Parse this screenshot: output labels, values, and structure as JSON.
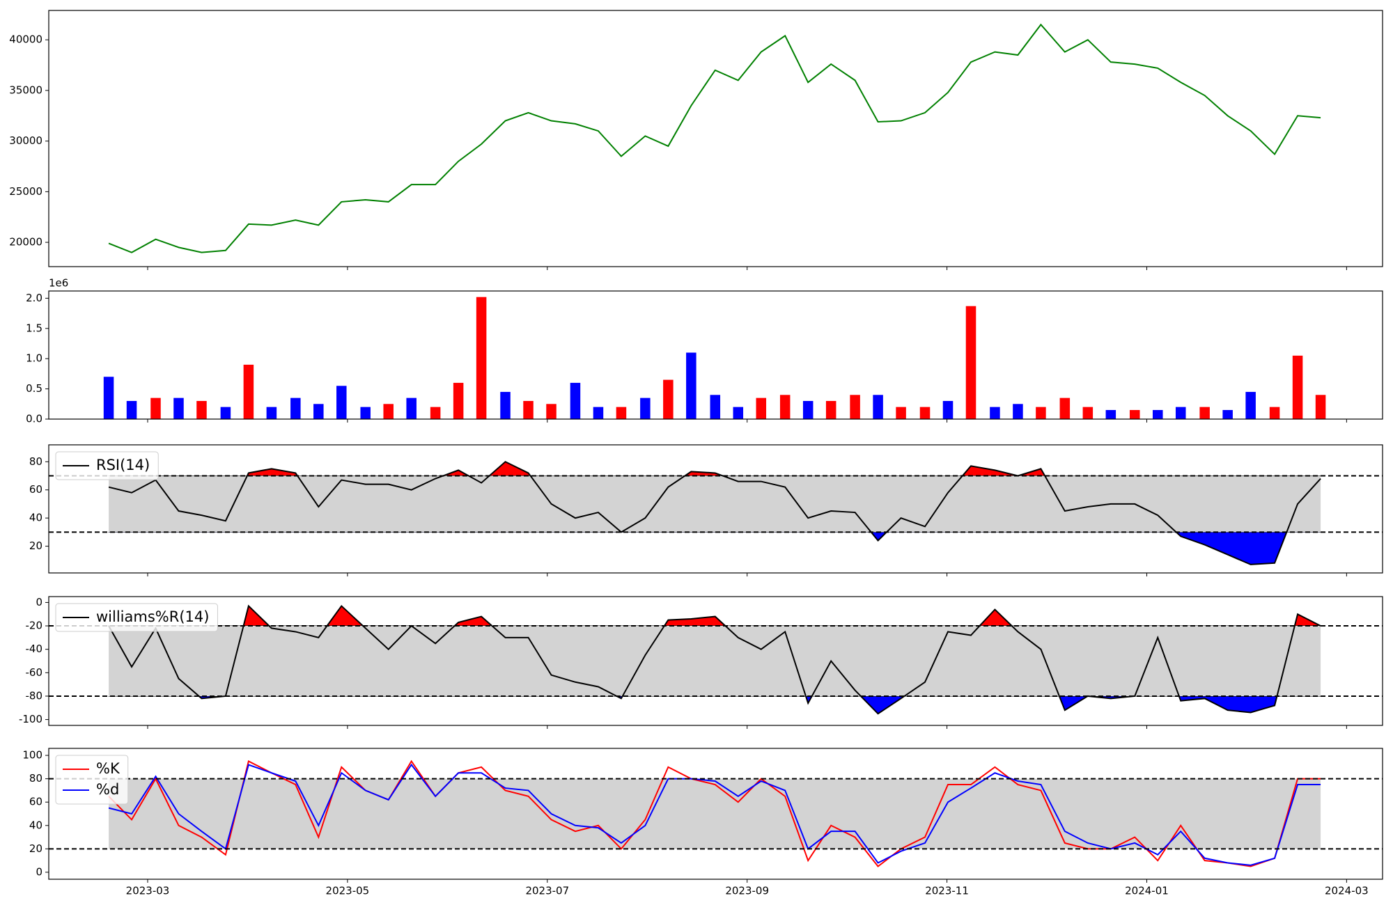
{
  "chart_data": [
    {
      "type": "line",
      "x": [
        -0.39,
        -0.16,
        0.08,
        0.31,
        0.54,
        0.78,
        1.01,
        1.24,
        1.48,
        1.71,
        1.94,
        2.18,
        2.41,
        2.64,
        2.88,
        3.11,
        3.34,
        3.58,
        3.81,
        4.04,
        4.28,
        4.51,
        4.74,
        4.98,
        5.21,
        5.44,
        5.68,
        5.91,
        6.14,
        6.38,
        6.61,
        6.84,
        7.08,
        7.31,
        7.54,
        7.78,
        8.01,
        8.24,
        8.48,
        8.71,
        8.94,
        9.18,
        9.41,
        9.64,
        9.88,
        10.11,
        10.34,
        10.58,
        10.81,
        11.04,
        11.28,
        11.51,
        11.74
      ],
      "xlim": [
        -0.99,
        12.36
      ],
      "ylim": [
        17600,
        42900
      ],
      "yticks": [
        20000,
        25000,
        30000,
        35000,
        40000
      ],
      "series": [
        {
          "color": "green",
          "values": [
            19900,
            19000,
            20300,
            19500,
            19000,
            19200,
            21800,
            21700,
            22200,
            21700,
            24000,
            24200,
            24000,
            25700,
            25700,
            28000,
            29700,
            32000,
            32800,
            32000,
            31700,
            31000,
            28500,
            30500,
            29500,
            33500,
            37000,
            36000,
            38800,
            40400,
            35800,
            37600,
            36000,
            31900,
            32000,
            32800,
            34800,
            37800,
            38800,
            38500,
            41500,
            38800,
            40000,
            37800,
            37600,
            37200,
            35800,
            34500,
            32500,
            31000,
            28700,
            32500,
            32300
          ]
        }
      ]
    },
    {
      "type": "bar",
      "x": [
        -0.39,
        -0.16,
        0.08,
        0.31,
        0.54,
        0.78,
        1.01,
        1.24,
        1.48,
        1.71,
        1.94,
        2.18,
        2.41,
        2.64,
        2.88,
        3.11,
        3.34,
        3.58,
        3.81,
        4.04,
        4.28,
        4.51,
        4.74,
        4.98,
        5.21,
        5.44,
        5.68,
        5.91,
        6.14,
        6.38,
        6.61,
        6.84,
        7.08,
        7.31,
        7.54,
        7.78,
        8.01,
        8.24,
        8.48,
        8.71,
        8.94,
        9.18,
        9.41,
        9.64,
        9.88,
        10.11,
        10.34,
        10.58,
        10.81,
        11.04,
        11.28,
        11.51,
        11.74
      ],
      "xlim": [
        -0.99,
        12.36
      ],
      "ylim": [
        0,
        2.12
      ],
      "yticks": [
        {
          "value": 0,
          "label": "0.0"
        },
        0.5,
        {
          "value": 1,
          "label": "1.0"
        },
        1.5,
        {
          "value": 2,
          "label": "2.0"
        }
      ],
      "y_offset_label": "1e6",
      "series": [
        {
          "colors": [
            "blue",
            "blue",
            "red",
            "blue",
            "red",
            "blue",
            "red",
            "blue",
            "blue",
            "blue",
            "blue",
            "blue",
            "red",
            "blue",
            "red",
            "red",
            "red",
            "blue",
            "red",
            "red",
            "blue",
            "blue",
            "red",
            "blue",
            "red",
            "blue",
            "blue",
            "blue",
            "red",
            "red",
            "blue",
            "red",
            "red",
            "blue",
            "red",
            "red",
            "blue",
            "red",
            "blue",
            "blue",
            "red",
            "red",
            "red",
            "blue",
            "red",
            "blue",
            "blue",
            "red",
            "blue",
            "blue",
            "red",
            "red",
            "red"
          ],
          "values": [
            0.7,
            0.3,
            0.35,
            0.35,
            0.3,
            0.2,
            0.9,
            0.2,
            0.35,
            0.25,
            0.55,
            0.2,
            0.25,
            0.35,
            0.2,
            0.6,
            2.02,
            0.45,
            0.3,
            0.25,
            0.6,
            0.2,
            0.2,
            0.35,
            0.65,
            1.1,
            0.4,
            0.2,
            0.35,
            0.4,
            0.3,
            0.3,
            0.4,
            0.4,
            0.2,
            0.2,
            0.3,
            1.87,
            0.2,
            0.25,
            0.2,
            0.35,
            0.2,
            0.15,
            0.15,
            0.15,
            0.2,
            0.2,
            0.15,
            0.45,
            0.2,
            1.05,
            0.4
          ]
        }
      ]
    },
    {
      "type": "line",
      "x": [
        -0.39,
        -0.16,
        0.08,
        0.31,
        0.54,
        0.78,
        1.01,
        1.24,
        1.48,
        1.71,
        1.94,
        2.18,
        2.41,
        2.64,
        2.88,
        3.11,
        3.34,
        3.58,
        3.81,
        4.04,
        4.28,
        4.51,
        4.74,
        4.98,
        5.21,
        5.44,
        5.68,
        5.91,
        6.14,
        6.38,
        6.61,
        6.84,
        7.08,
        7.31,
        7.54,
        7.78,
        8.01,
        8.24,
        8.48,
        8.71,
        8.94,
        9.18,
        9.41,
        9.64,
        9.88,
        10.11,
        10.34,
        10.58,
        10.81,
        11.04,
        11.28,
        11.51,
        11.74
      ],
      "xlim": [
        -0.99,
        12.36
      ],
      "ylim": [
        1,
        92
      ],
      "yticks": [
        20,
        40,
        60,
        80
      ],
      "hlines": [
        30,
        70
      ],
      "band_color": "#d3d3d3",
      "overbought_color": "red",
      "oversold_color": "blue",
      "legend": "upper left",
      "series": [
        {
          "name": "RSI(14)",
          "color": "black",
          "values": [
            62,
            58,
            67,
            45,
            42,
            38,
            72,
            75,
            72,
            48,
            67,
            64,
            64,
            60,
            68,
            74,
            65,
            80,
            72,
            50,
            40,
            44,
            30,
            40,
            62,
            73,
            72,
            66,
            66,
            62,
            40,
            45,
            44,
            24,
            40,
            34,
            58,
            77,
            74,
            70,
            75,
            45,
            48,
            50,
            50,
            42,
            27,
            21,
            14,
            7,
            8,
            50,
            68
          ]
        }
      ]
    },
    {
      "type": "line",
      "x": [
        -0.39,
        -0.16,
        0.08,
        0.31,
        0.54,
        0.78,
        1.01,
        1.24,
        1.48,
        1.71,
        1.94,
        2.18,
        2.41,
        2.64,
        2.88,
        3.11,
        3.34,
        3.58,
        3.81,
        4.04,
        4.28,
        4.51,
        4.74,
        4.98,
        5.21,
        5.44,
        5.68,
        5.91,
        6.14,
        6.38,
        6.61,
        6.84,
        7.08,
        7.31,
        7.54,
        7.78,
        8.01,
        8.24,
        8.48,
        8.71,
        8.94,
        9.18,
        9.41,
        9.64,
        9.88,
        10.11,
        10.34,
        10.58,
        10.81,
        11.04,
        11.28,
        11.51,
        11.74
      ],
      "xlim": [
        -0.99,
        12.36
      ],
      "ylim": [
        -105,
        5
      ],
      "yticks": [
        -100,
        -80,
        -60,
        -40,
        -20,
        0
      ],
      "hlines": [
        -80,
        -20
      ],
      "band_color": "#d3d3d3",
      "overbought_color": "red",
      "oversold_color": "blue",
      "legend": "upper left",
      "series": [
        {
          "name": "williams%R(14)",
          "color": "black",
          "values": [
            -20,
            -55,
            -22,
            -65,
            -82,
            -80,
            -3,
            -22,
            -25,
            -30,
            -3,
            -22,
            -40,
            -20,
            -35,
            -17,
            -12,
            -30,
            -30,
            -62,
            -68,
            -72,
            -82,
            -45,
            -15,
            -14,
            -12,
            -30,
            -40,
            -25,
            -86,
            -50,
            -75,
            -95,
            -82,
            -68,
            -25,
            -28,
            -6,
            -25,
            -40,
            -92,
            -80,
            -82,
            -80,
            -30,
            -84,
            -82,
            -92,
            -94,
            -88,
            -10,
            -20
          ]
        }
      ]
    },
    {
      "type": "line",
      "x": [
        -0.39,
        -0.16,
        0.08,
        0.31,
        0.54,
        0.78,
        1.01,
        1.24,
        1.48,
        1.71,
        1.94,
        2.18,
        2.41,
        2.64,
        2.88,
        3.11,
        3.34,
        3.58,
        3.81,
        4.04,
        4.28,
        4.51,
        4.74,
        4.98,
        5.21,
        5.44,
        5.68,
        5.91,
        6.14,
        6.38,
        6.61,
        6.84,
        7.08,
        7.31,
        7.54,
        7.78,
        8.01,
        8.24,
        8.48,
        8.71,
        8.94,
        9.18,
        9.41,
        9.64,
        9.88,
        10.11,
        10.34,
        10.58,
        10.81,
        11.04,
        11.28,
        11.51,
        11.74
      ],
      "xlim": [
        -0.99,
        12.36
      ],
      "ylim": [
        -6,
        106
      ],
      "yticks": [
        0,
        20,
        40,
        60,
        80,
        100
      ],
      "xticks": [
        {
          "value": 0,
          "label": "2023-03"
        },
        {
          "value": 2,
          "label": "2023-05"
        },
        {
          "value": 4,
          "label": "2023-07"
        },
        {
          "value": 6,
          "label": "2023-09"
        },
        {
          "value": 8,
          "label": "2023-11"
        },
        {
          "value": 10,
          "label": "2024-01"
        },
        {
          "value": 12,
          "label": "2024-03"
        }
      ],
      "hlines": [
        20,
        80
      ],
      "band_color": "#d3d3d3",
      "legend": "upper left",
      "series": [
        {
          "name": "%K",
          "color": "red",
          "values": [
            65,
            45,
            80,
            40,
            30,
            15,
            95,
            85,
            75,
            30,
            90,
            70,
            62,
            95,
            65,
            85,
            90,
            70,
            65,
            45,
            35,
            40,
            20,
            45,
            90,
            80,
            75,
            60,
            80,
            65,
            10,
            40,
            30,
            5,
            20,
            30,
            75,
            75,
            90,
            75,
            70,
            25,
            20,
            20,
            30,
            10,
            40,
            10,
            8,
            5,
            12,
            80,
            80
          ]
        },
        {
          "name": "%d",
          "color": "blue",
          "values": [
            55,
            50,
            82,
            50,
            35,
            20,
            92,
            85,
            78,
            40,
            85,
            70,
            62,
            92,
            65,
            85,
            85,
            72,
            70,
            50,
            40,
            38,
            25,
            40,
            80,
            80,
            78,
            65,
            78,
            70,
            20,
            35,
            35,
            8,
            18,
            25,
            60,
            72,
            85,
            78,
            75,
            35,
            25,
            20,
            25,
            15,
            35,
            12,
            8,
            6,
            12,
            75,
            75
          ]
        }
      ]
    }
  ]
}
